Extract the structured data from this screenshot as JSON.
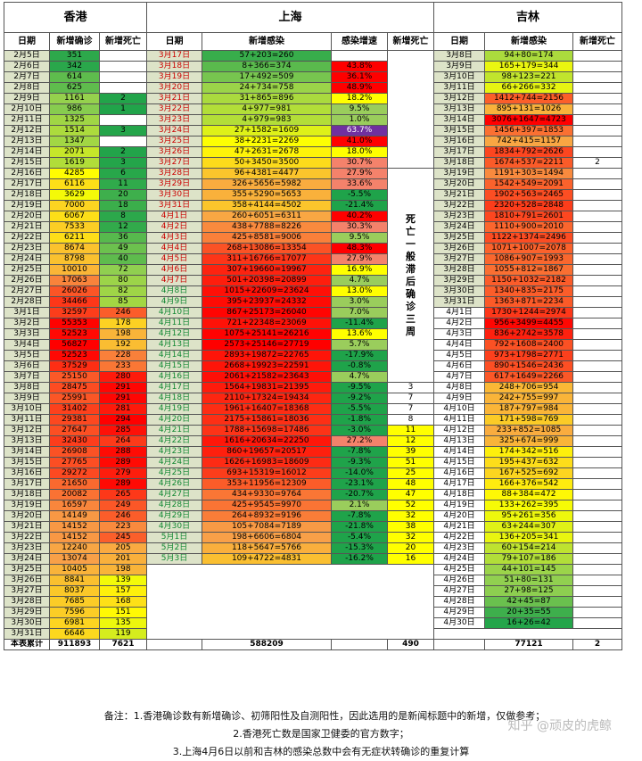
{
  "headers": {
    "regions": [
      "香港",
      "上海",
      "吉林"
    ],
    "hk_cols": [
      "日期",
      "新增确诊",
      "新增死亡"
    ],
    "sh_cols": [
      "日期",
      "新增感染",
      "感染增速",
      "新增死亡"
    ],
    "jl_cols": [
      "日期",
      "新增感染",
      "新增死亡"
    ]
  },
  "sh_death_note": "死亡一般滞后确诊三周",
  "palette": {
    "red": "#ff0000",
    "green": "#1fa34a",
    "yellow": "#ffff00",
    "violet": "#7030a0"
  },
  "hk": [
    [
      "2月5日",
      "351",
      ""
    ],
    [
      "2月6日",
      "342",
      ""
    ],
    [
      "2月7日",
      "614",
      ""
    ],
    [
      "2月8日",
      "625",
      ""
    ],
    [
      "2月9日",
      "1161",
      "2"
    ],
    [
      "2月10日",
      "986",
      "1"
    ],
    [
      "2月11日",
      "1325",
      ""
    ],
    [
      "2月12日",
      "1514",
      "3"
    ],
    [
      "2月13日",
      "1347",
      ""
    ],
    [
      "2月14日",
      "2071",
      "2"
    ],
    [
      "2月15日",
      "1619",
      "3"
    ],
    [
      "2月16日",
      "4285",
      "6"
    ],
    [
      "2月17日",
      "6116",
      "11"
    ],
    [
      "2月18日",
      "3629",
      "20"
    ],
    [
      "2月19日",
      "7000",
      "18"
    ],
    [
      "2月20日",
      "6067",
      "8"
    ],
    [
      "2月21日",
      "7533",
      "12"
    ],
    [
      "2月22日",
      "6211",
      "36"
    ],
    [
      "2月23日",
      "8674",
      "49"
    ],
    [
      "2月24日",
      "8798",
      "40"
    ],
    [
      "2月25日",
      "10010",
      "72"
    ],
    [
      "2月26日",
      "17063",
      "80"
    ],
    [
      "2月27日",
      "26026",
      "82"
    ],
    [
      "2月28日",
      "34466",
      "85"
    ],
    [
      "3月1日",
      "32597",
      "246"
    ],
    [
      "3月2日",
      "55353",
      "178"
    ],
    [
      "3月3日",
      "52523",
      "198"
    ],
    [
      "3月4日",
      "56827",
      "192"
    ],
    [
      "3月5日",
      "52523",
      "228"
    ],
    [
      "3月6日",
      "37529",
      "233"
    ],
    [
      "3月7日",
      "25150",
      "280"
    ],
    [
      "3月8日",
      "28475",
      "291"
    ],
    [
      "3月9日",
      "25991",
      "291"
    ],
    [
      "3月10日",
      "31402",
      "281"
    ],
    [
      "3月11日",
      "29381",
      "294"
    ],
    [
      "3月12日",
      "27647",
      "285"
    ],
    [
      "3月13日",
      "32430",
      "264"
    ],
    [
      "3月14日",
      "26908",
      "288"
    ],
    [
      "3月15日",
      "27765",
      "289"
    ],
    [
      "3月16日",
      "29272",
      "279"
    ],
    [
      "3月17日",
      "21650",
      "289"
    ],
    [
      "3月18日",
      "20082",
      "265"
    ],
    [
      "3月19日",
      "16597",
      "249"
    ],
    [
      "3月20日",
      "14149",
      "246"
    ],
    [
      "3月21日",
      "14152",
      "223"
    ],
    [
      "3月22日",
      "14152",
      "245"
    ],
    [
      "3月23日",
      "12240",
      "205"
    ],
    [
      "3月24日",
      "13074",
      "201"
    ],
    [
      "3月25日",
      "10405",
      "198"
    ],
    [
      "3月26日",
      "8841",
      "139"
    ],
    [
      "3月27日",
      "8037",
      "157"
    ],
    [
      "3月28日",
      "7685",
      "168"
    ],
    [
      "3月29日",
      "7596",
      "151"
    ],
    [
      "3月30日",
      "6981",
      "135"
    ],
    [
      "3月31日",
      "6646",
      "119"
    ]
  ],
  "hk_total": [
    "本表累计",
    "911893",
    "7621"
  ],
  "sh": [
    [
      "3月17日",
      "57+203=260",
      ""
    ],
    [
      "3月18日",
      "8+366=374",
      "43.8%"
    ],
    [
      "3月19日",
      "17+492=509",
      "36.1%"
    ],
    [
      "3月20日",
      "24+734=758",
      "48.9%"
    ],
    [
      "3月21日",
      "31+865=896",
      "18.2%"
    ],
    [
      "3月22日",
      "4+977=981",
      "9.5%"
    ],
    [
      "3月23日",
      "4+979=983",
      "1.0%"
    ],
    [
      "3月24日",
      "27+1582=1609",
      "63.7%"
    ],
    [
      "3月25日",
      "38+2231=2269",
      "41.0%"
    ],
    [
      "3月26日",
      "47+2631=2678",
      "18.0%"
    ],
    [
      "3月27日",
      "50+3450=3500",
      "30.7%"
    ],
    [
      "3月28日",
      "96+4381=4477",
      "27.9%"
    ],
    [
      "3月29日",
      "326+5656=5982",
      "33.6%"
    ],
    [
      "3月30日",
      "355+5290=5653",
      "-5.5%"
    ],
    [
      "3月31日",
      "358+4144=4502",
      "-21.4%"
    ],
    [
      "4月1日",
      "260+6051=6311",
      "40.2%"
    ],
    [
      "4月2日",
      "438+7788=8226",
      "30.3%"
    ],
    [
      "4月3日",
      "425+8581=9006",
      "9.5%"
    ],
    [
      "4月4日",
      "268+13086=13354",
      "48.3%"
    ],
    [
      "4月5日",
      "311+16766=17077",
      "27.9%"
    ],
    [
      "4月6日",
      "307+19660=19967",
      "16.9%"
    ],
    [
      "4月7日",
      "501+20398=20899",
      "4.7%"
    ],
    [
      "4月8日",
      "1015+22609=23624",
      "13.0%"
    ],
    [
      "4月9日",
      "395+23937=24332",
      "3.0%"
    ],
    [
      "4月10日",
      "867+25173=26040",
      "7.0%"
    ],
    [
      "4月11日",
      "721+22348=23069",
      "-11.4%"
    ],
    [
      "4月12日",
      "1075+25141=26216",
      "13.6%"
    ],
    [
      "4月13日",
      "2573+25146=27719",
      "5.7%"
    ],
    [
      "4月14日",
      "2893+19872=22765",
      "-17.9%"
    ],
    [
      "4月15日",
      "2668+19923=22591",
      "-0.8%"
    ],
    [
      "4月16日",
      "2061+21582=23643",
      "4.7%"
    ],
    [
      "4月17日",
      "1564+19831=21395",
      "-9.5%"
    ],
    [
      "4月18日",
      "2110+17324=19434",
      "-9.2%"
    ],
    [
      "4月19日",
      "1961+16407=18368",
      "-5.5%"
    ],
    [
      "4月20日",
      "2175+15861=18036",
      "-1.8%"
    ],
    [
      "4月21日",
      "1788+15698=17486",
      "-3.0%"
    ],
    [
      "4月22日",
      "1616+20634=22250",
      "27.2%"
    ],
    [
      "4月23日",
      "860+19657=20517",
      "-7.8%"
    ],
    [
      "4月24日",
      "1626+16983=18609",
      "-9.3%"
    ],
    [
      "4月25日",
      "693+15319=16012",
      "-14.0%"
    ],
    [
      "4月26日",
      "353+11956=12309",
      "-23.1%"
    ],
    [
      "4月27日",
      "434+9330=9764",
      "-20.7%"
    ],
    [
      "4月28日",
      "425+9545=9970",
      "2.1%"
    ],
    [
      "4月29日",
      "264+8932=9196",
      "-7.8%"
    ],
    [
      "4月30日",
      "105+7084=7189",
      "-21.8%"
    ],
    [
      "5月1日",
      "198+6606=6804",
      "-5.4%"
    ],
    [
      "5月2日",
      "118+5647=5766",
      "-15.3%"
    ],
    [
      "5月3日",
      "109+4722=4831",
      "-16.2%"
    ]
  ],
  "sh_deaths": [
    "3",
    "7",
    "7",
    "8",
    "11",
    "12",
    "39",
    "51",
    "25",
    "48",
    "47",
    "52",
    "32",
    "38",
    "32",
    "20",
    "16"
  ],
  "sh_total": [
    "",
    "588209",
    "",
    "490"
  ],
  "jl": [
    [
      "3月8日",
      "94+80=174",
      ""
    ],
    [
      "3月9日",
      "165+179=344",
      ""
    ],
    [
      "3月10日",
      "98+123=221",
      ""
    ],
    [
      "3月11日",
      "66+266=332",
      ""
    ],
    [
      "3月12日",
      "1412+744=2156",
      ""
    ],
    [
      "3月13日",
      "895+131=1026",
      ""
    ],
    [
      "3月14日",
      "3076+1647=4723",
      ""
    ],
    [
      "3月15日",
      "1456+397=1853",
      ""
    ],
    [
      "3月16日",
      "742+415=1157",
      ""
    ],
    [
      "3月17日",
      "1834+792=2626",
      ""
    ],
    [
      "3月18日",
      "1674+537=2211",
      "2"
    ],
    [
      "3月19日",
      "1191+303=1494",
      ""
    ],
    [
      "3月20日",
      "1542+549=2091",
      ""
    ],
    [
      "3月21日",
      "1902+563=2465",
      ""
    ],
    [
      "3月22日",
      "2320+528=2848",
      ""
    ],
    [
      "3月23日",
      "1810+791=2601",
      ""
    ],
    [
      "3月24日",
      "1110+900=2010",
      ""
    ],
    [
      "3月25日",
      "1122+1374=2496",
      ""
    ],
    [
      "3月26日",
      "1071+1007=2078",
      ""
    ],
    [
      "3月27日",
      "1086+907=1993",
      ""
    ],
    [
      "3月28日",
      "1055+812=1867",
      ""
    ],
    [
      "3月29日",
      "1150+1032=2182",
      ""
    ],
    [
      "3月30日",
      "1340+835=2175",
      ""
    ],
    [
      "3月31日",
      "1363+871=2234",
      ""
    ],
    [
      "4月1日",
      "1730+1244=2974",
      ""
    ],
    [
      "4月2日",
      "956+3499=4455",
      ""
    ],
    [
      "4月3日",
      "836+2742=3578",
      ""
    ],
    [
      "4月4日",
      "792+1608=2400",
      ""
    ],
    [
      "4月5日",
      "973+1798=2771",
      ""
    ],
    [
      "4月6日",
      "890+1546=2436",
      ""
    ],
    [
      "4月7日",
      "617+1649=2266",
      ""
    ],
    [
      "4月8日",
      "248+706=954",
      ""
    ],
    [
      "4月9日",
      "242+755=997",
      ""
    ],
    [
      "4月10日",
      "187+797=984",
      ""
    ],
    [
      "4月11日",
      "171+598=769",
      ""
    ],
    [
      "4月12日",
      "233+852=1085",
      ""
    ],
    [
      "4月13日",
      "325+674=999",
      ""
    ],
    [
      "4月14日",
      "174+342=516",
      ""
    ],
    [
      "4月15日",
      "195+437=632",
      ""
    ],
    [
      "4月16日",
      "167+525=692",
      ""
    ],
    [
      "4月17日",
      "166+376=542",
      ""
    ],
    [
      "4月18日",
      "88+384=472",
      ""
    ],
    [
      "4月19日",
      "133+262=395",
      ""
    ],
    [
      "4月20日",
      "95+261=356",
      ""
    ],
    [
      "4月21日",
      "63+244=307",
      ""
    ],
    [
      "4月22日",
      "136+205=341",
      ""
    ],
    [
      "4月23日",
      "60+154=214",
      ""
    ],
    [
      "4月24日",
      "79+107=186",
      ""
    ],
    [
      "4月25日",
      "44+101=145",
      ""
    ],
    [
      "4月26日",
      "51+80=131",
      ""
    ],
    [
      "4月27日",
      "27+98=125",
      ""
    ],
    [
      "4月28日",
      "42+45=87",
      ""
    ],
    [
      "4月29日",
      "20+35=55",
      ""
    ],
    [
      "4月30日",
      "16+26=42",
      ""
    ]
  ],
  "jl_total": [
    "",
    "77121",
    "2"
  ],
  "notes": [
    "备注：1.香港确诊数有新增确诊、初筛阳性及自测阳性，因此选用的是新闻标题中的新增，仅做参考；",
    "2.香港死亡数是国家卫健委的官方数字；",
    "3.上海4月6日以前和吉林的感染总数中会有无症状转确诊的重复计算"
  ],
  "watermark": "知乎 @顽皮的虎鲸"
}
